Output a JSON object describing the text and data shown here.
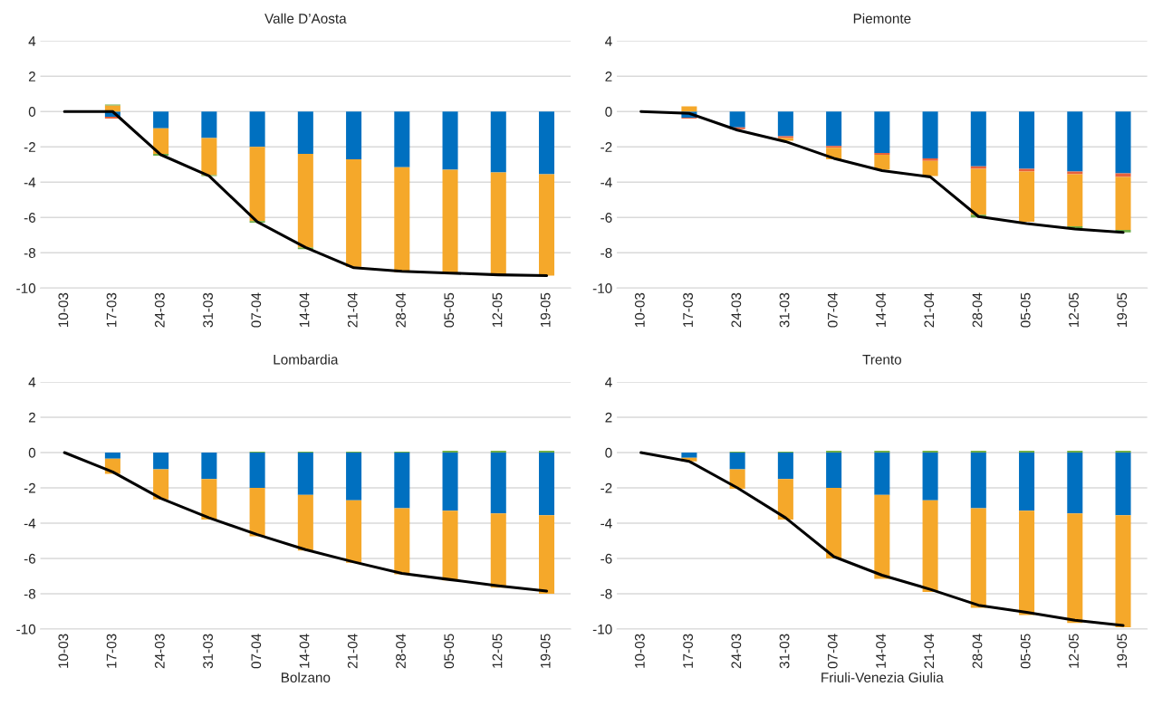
{
  "chart_data": [
    {
      "type": "bar",
      "title": "Valle D’Aosta",
      "stacked": true,
      "grid": "y",
      "ylim": [
        -10,
        4
      ],
      "yticks": [
        -10,
        -8,
        -6,
        -4,
        -2,
        0,
        2,
        4
      ],
      "categories": [
        "10-03",
        "17-03",
        "24-03",
        "31-03",
        "07-04",
        "14-04",
        "21-04",
        "28-04",
        "05-05",
        "12-05",
        "19-05"
      ],
      "series": [
        {
          "color": "#0070c0",
          "values": [
            null,
            -0.3,
            -0.95,
            -1.5,
            -2.0,
            -2.4,
            -2.7,
            -3.15,
            -3.3,
            -3.45,
            -3.55
          ]
        },
        {
          "color": "#f5a82a",
          "values": [
            null,
            0.35,
            -1.45,
            -2.1,
            -4.2,
            -5.3,
            -6.1,
            -5.95,
            -5.9,
            -5.85,
            -5.75
          ]
        },
        {
          "color": "#e8613c",
          "values": [
            null,
            -0.1,
            null,
            null,
            null,
            null,
            null,
            null,
            null,
            null,
            null
          ]
        },
        {
          "color": "#70ad47",
          "values": [
            null,
            0.05,
            -0.1,
            -0.05,
            -0.1,
            -0.1,
            null,
            null,
            null,
            null,
            null
          ]
        },
        {
          "type": "line",
          "color": "#000000",
          "values": [
            0,
            0,
            -2.45,
            -3.65,
            -6.25,
            -7.7,
            -8.85,
            -9.05,
            -9.15,
            -9.25,
            -9.3
          ]
        }
      ]
    },
    {
      "type": "bar",
      "title": "Piemonte",
      "stacked": true,
      "grid": "y",
      "ylim": [
        -10,
        4
      ],
      "yticks": [
        -10,
        -8,
        -6,
        -4,
        -2,
        0,
        2,
        4
      ],
      "categories": [
        "10-03",
        "17-03",
        "24-03",
        "31-03",
        "07-04",
        "14-04",
        "21-04",
        "28-04",
        "05-05",
        "12-05",
        "19-05"
      ],
      "series": [
        {
          "color": "#0070c0",
          "values": [
            null,
            -0.35,
            -0.9,
            -1.4,
            -1.95,
            -2.35,
            -2.65,
            -3.1,
            -3.25,
            -3.4,
            -3.5
          ]
        },
        {
          "color": "#e8613c",
          "values": [
            null,
            -0.05,
            -0.1,
            -0.1,
            -0.1,
            -0.1,
            -0.15,
            -0.15,
            -0.15,
            -0.15,
            -0.2
          ]
        },
        {
          "color": "#f5a82a",
          "values": [
            null,
            0.3,
            null,
            -0.15,
            -0.65,
            -0.85,
            -0.85,
            -2.6,
            -2.85,
            -2.95,
            -3.0
          ]
        },
        {
          "color": "#70ad47",
          "values": [
            null,
            null,
            null,
            null,
            null,
            null,
            null,
            -0.15,
            null,
            -0.1,
            -0.15
          ]
        },
        {
          "type": "line",
          "color": "#000000",
          "values": [
            0,
            -0.1,
            -1.05,
            -1.7,
            -2.65,
            -3.35,
            -3.7,
            -5.95,
            -6.35,
            -6.65,
            -6.85
          ]
        }
      ]
    },
    {
      "type": "bar",
      "title": "Lombardia",
      "stacked": true,
      "grid": "y",
      "ylim": [
        -10,
        4
      ],
      "yticks": [
        -10,
        -8,
        -6,
        -4,
        -2,
        0,
        2,
        4
      ],
      "categories": [
        "10-03",
        "17-03",
        "24-03",
        "31-03",
        "07-04",
        "14-04",
        "21-04",
        "28-04",
        "05-05",
        "12-05",
        "19-05"
      ],
      "series": [
        {
          "color": "#0070c0",
          "values": [
            null,
            -0.35,
            -0.95,
            -1.5,
            -2.0,
            -2.4,
            -2.7,
            -3.15,
            -3.3,
            -3.45,
            -3.55
          ]
        },
        {
          "color": "#f5a82a",
          "values": [
            null,
            -0.85,
            -1.7,
            -2.3,
            -2.75,
            -3.15,
            -3.55,
            -3.75,
            -3.95,
            -4.2,
            -4.45
          ]
        },
        {
          "color": "#70ad47",
          "values": [
            null,
            null,
            null,
            null,
            0.05,
            0.05,
            0.05,
            0.05,
            0.1,
            0.1,
            0.1
          ]
        },
        {
          "type": "line",
          "color": "#000000",
          "values": [
            0,
            -1.1,
            -2.6,
            -3.7,
            -4.65,
            -5.5,
            -6.2,
            -6.85,
            -7.2,
            -7.55,
            -7.85
          ]
        }
      ]
    },
    {
      "type": "bar",
      "title": "Trento",
      "stacked": true,
      "grid": "y",
      "ylim": [
        -10,
        4
      ],
      "yticks": [
        -10,
        -8,
        -6,
        -4,
        -2,
        0,
        2,
        4
      ],
      "categories": [
        "10-03",
        "17-03",
        "24-03",
        "31-03",
        "07-04",
        "14-04",
        "21-04",
        "28-04",
        "05-05",
        "12-05",
        "19-05"
      ],
      "series": [
        {
          "color": "#0070c0",
          "values": [
            null,
            -0.3,
            -0.95,
            -1.5,
            -2.0,
            -2.4,
            -2.7,
            -3.15,
            -3.3,
            -3.45,
            -3.55
          ]
        },
        {
          "color": "#f5a82a",
          "values": [
            null,
            -0.2,
            -1.1,
            -2.3,
            -4.0,
            -4.75,
            -5.2,
            -5.65,
            -5.9,
            -6.2,
            -6.35
          ]
        },
        {
          "color": "#70ad47",
          "values": [
            null,
            null,
            0.05,
            0.05,
            0.1,
            0.1,
            0.1,
            0.1,
            0.1,
            0.1,
            0.1
          ]
        },
        {
          "type": "line",
          "color": "#000000",
          "values": [
            0,
            -0.5,
            -2.0,
            -3.7,
            -5.9,
            -6.95,
            -7.75,
            -8.65,
            -9.05,
            -9.5,
            -9.8
          ]
        }
      ]
    },
    {
      "type": "other",
      "title": "Bolzano"
    },
    {
      "type": "other",
      "title": "Friuli-Venezia Giulia"
    }
  ]
}
